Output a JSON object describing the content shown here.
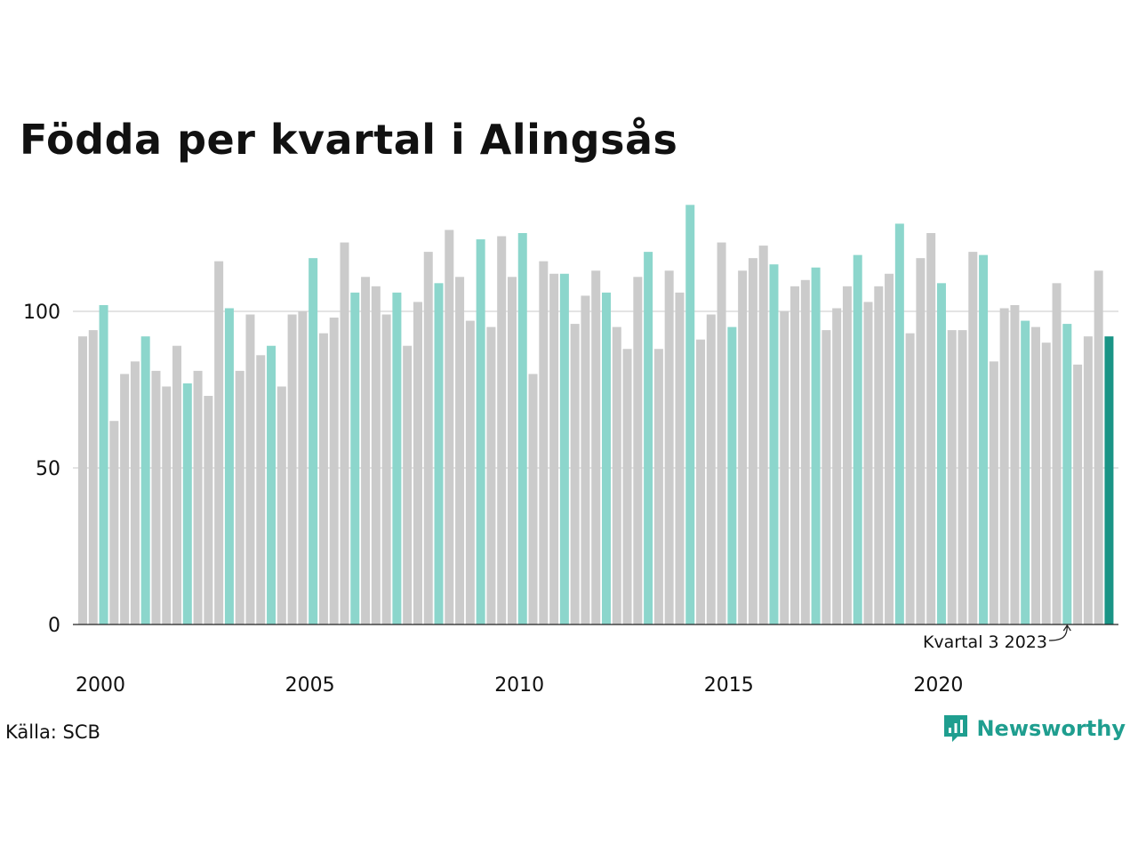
{
  "title": "Födda per kvartal i Alingsås",
  "source": "Källa: SCB",
  "brand": "Newsworthy",
  "colors": {
    "bar_default": "#cbcbcb",
    "bar_q3": "#8cd6cc",
    "bar_latest": "#1a9486",
    "gridline": "#dcdcdc",
    "axis": "#222222",
    "brand": "#1f9e8f"
  },
  "chart_data": {
    "type": "bar",
    "title": "Födda per kvartal i Alingsås",
    "xlabel": "",
    "ylabel": "",
    "ylim": [
      0,
      140
    ],
    "yticks": [
      0,
      50,
      100
    ],
    "xticks": [
      "2000",
      "2005",
      "2010",
      "2015",
      "2020"
    ],
    "grid": true,
    "start_year": 2000,
    "values": [
      92,
      94,
      102,
      65,
      80,
      84,
      92,
      81,
      76,
      89,
      77,
      81,
      73,
      116,
      101,
      81,
      99,
      86,
      89,
      76,
      99,
      100,
      117,
      93,
      98,
      122,
      106,
      111,
      108,
      99,
      106,
      89,
      103,
      119,
      109,
      126,
      111,
      97,
      123,
      95,
      124,
      111,
      125,
      80,
      116,
      112,
      112,
      96,
      105,
      113,
      106,
      95,
      88,
      111,
      119,
      88,
      113,
      106,
      134,
      91,
      99,
      122,
      95,
      113,
      117,
      121,
      115,
      100,
      108,
      110,
      114,
      94,
      101,
      108,
      118,
      103,
      108,
      112,
      128,
      93,
      117,
      125,
      109,
      94,
      94,
      119,
      118,
      84,
      101,
      102,
      97,
      95,
      90,
      109,
      96,
      83,
      92,
      113,
      92
    ],
    "annotation": "Kvartal 3 2023"
  }
}
